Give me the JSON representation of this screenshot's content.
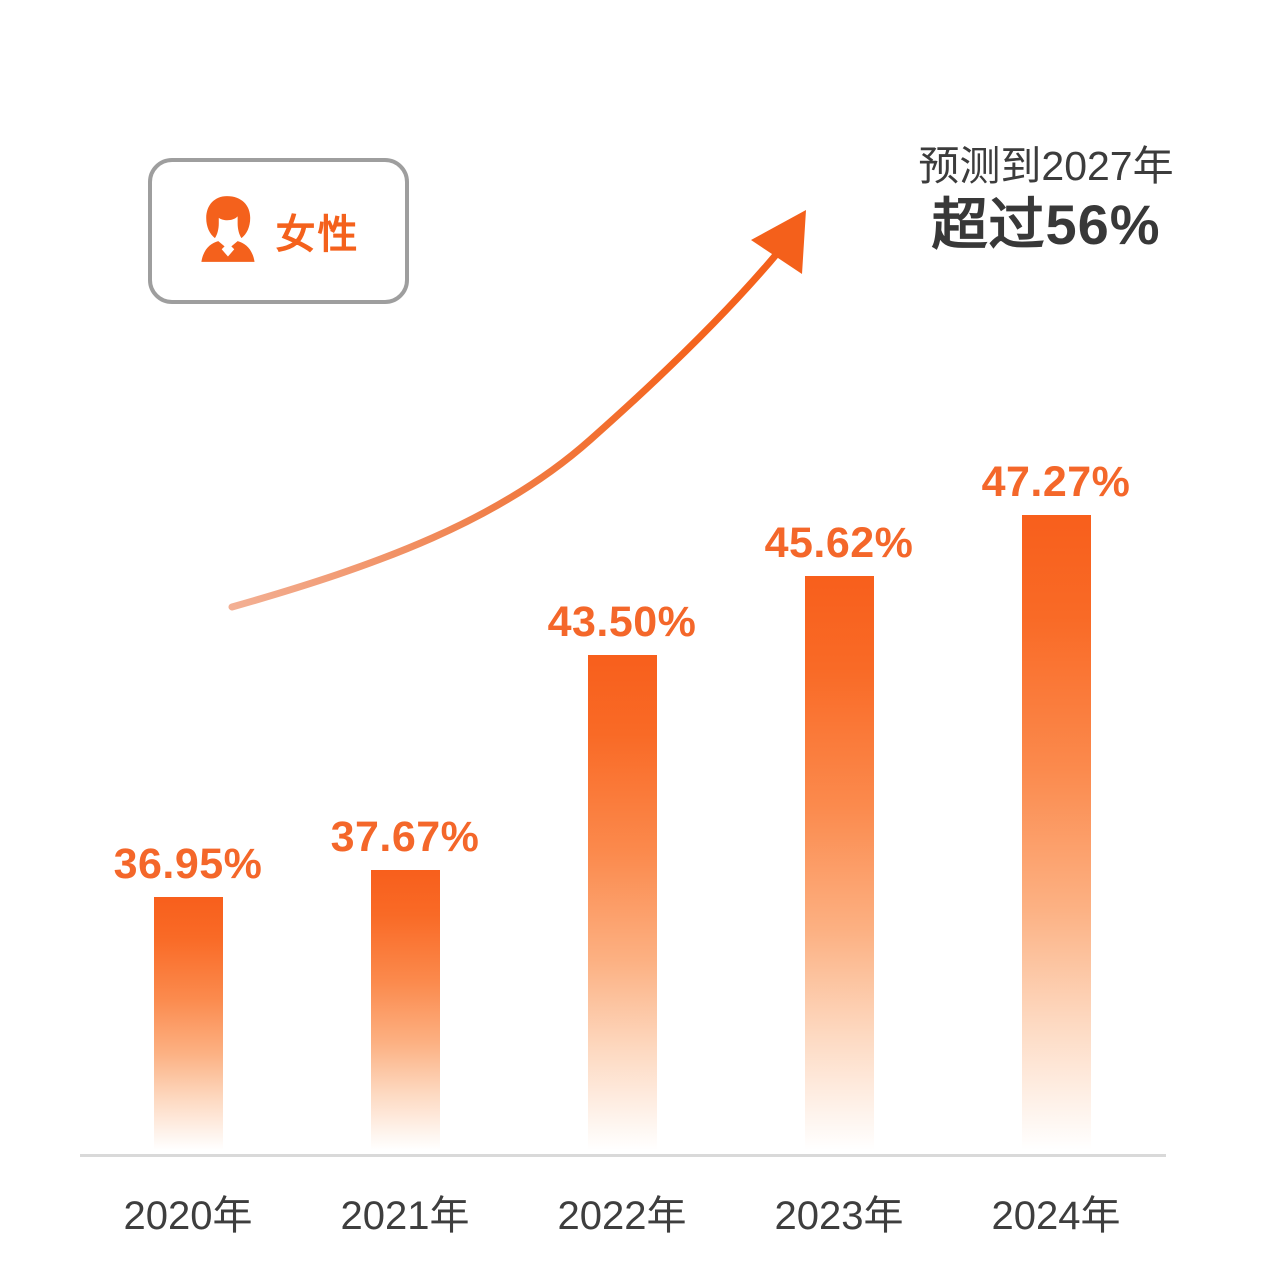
{
  "page": {
    "background": "#ffffff"
  },
  "legend_badge": {
    "label": "女性",
    "icon": "female-avatar-icon",
    "text_color": "#f4611c",
    "border_color": "#9e9e9e"
  },
  "prediction": {
    "line1": "预测到2027年",
    "line2": "超过56%",
    "text_color": "#3c3c3c"
  },
  "trend_arrow": {
    "color_start": "#f3b094",
    "color_end": "#f4601b"
  },
  "chart_data": {
    "type": "bar",
    "title": "",
    "series_name": "女性",
    "categories": [
      "2020年",
      "2021年",
      "2022年",
      "2023年",
      "2024年"
    ],
    "values": [
      36.95,
      37.67,
      43.5,
      45.62,
      47.27
    ],
    "value_labels": [
      "36.95%",
      "37.67%",
      "43.50%",
      "45.62%",
      "47.27%"
    ],
    "annotation": "预测到2027年 超过56%",
    "annotation_value": 56,
    "annotation_year": "2027年",
    "xlabel": "",
    "ylabel": "",
    "ylim": [
      30,
      50
    ],
    "grid": false,
    "legend_position": "top-left",
    "bar_color_top": "#f85f1c",
    "bar_color_bottom": "#ffffff",
    "value_label_color": "#f4672a",
    "axis_label_color": "#3e3e3e",
    "baseline_color": "#d9d9d9"
  }
}
